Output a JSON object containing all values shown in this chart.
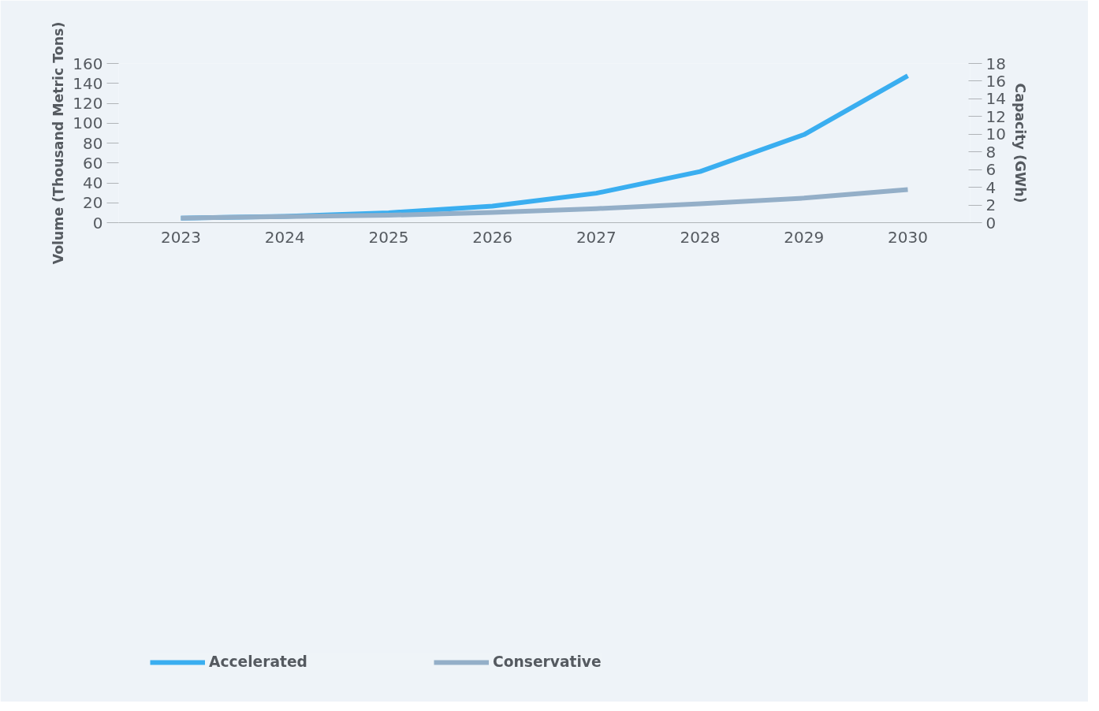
{
  "chart_data": {
    "type": "line",
    "categories": [
      "2023",
      "2024",
      "2025",
      "2026",
      "2027",
      "2028",
      "2029",
      "2030"
    ],
    "series": [
      {
        "name": "Accelerated",
        "color": "#3aaef0",
        "values": [
          4.6,
          6.4,
          10,
          16.7,
          29.6,
          51.4,
          88.5,
          147.7
        ]
      },
      {
        "name": "Conservative",
        "color": "#94afc8",
        "values": [
          4.6,
          6.2,
          7.5,
          10.3,
          14.1,
          19,
          24.7,
          33.2
        ]
      }
    ],
    "ylabel": "Volume (Thousand Metric Tons)",
    "y2label": "Capacity (GWh)",
    "ylim": [
      0,
      160
    ],
    "yticks": [
      0,
      20,
      40,
      60,
      80,
      100,
      120,
      140,
      160
    ],
    "y2lim": [
      0,
      18
    ],
    "y2ticks": [
      0,
      2,
      4,
      6,
      8,
      10,
      12,
      14,
      16,
      18
    ],
    "grid": false,
    "legend": "bottom left",
    "marker": "none",
    "line_style": "solid"
  }
}
